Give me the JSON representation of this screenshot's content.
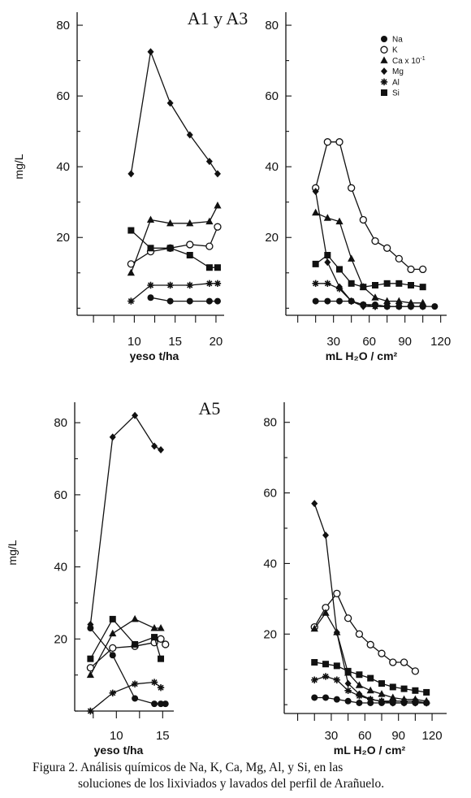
{
  "chart_data": [
    {
      "type": "line",
      "title": "A1 y A3",
      "xlabel": "yeso t/ha",
      "ylabel": "mg/L",
      "xlim": [
        3,
        21
      ],
      "ylim": [
        -2,
        83
      ],
      "xticks": [
        10,
        15,
        20
      ],
      "yticks": [
        20,
        40,
        60,
        80
      ],
      "series": [
        {
          "name": "Na",
          "x": [
            9.6,
            12,
            14.4,
            16.8,
            19.2,
            20.2
          ],
          "y": [
            null,
            3,
            2,
            2,
            2,
            2
          ]
        },
        {
          "name": "K",
          "x": [
            9.6,
            12,
            14.4,
            16.8,
            19.2,
            20.2
          ],
          "y": [
            12.5,
            16,
            17,
            18,
            17.5,
            23
          ]
        },
        {
          "name": "Ca x 10^-1",
          "x": [
            9.6,
            12,
            14.4,
            16.8,
            19.2,
            20.2
          ],
          "y": [
            10,
            25,
            24,
            24,
            24.5,
            29
          ]
        },
        {
          "name": "Mg",
          "x": [
            9.6,
            12,
            14.4,
            16.8,
            19.2,
            20.2
          ],
          "y": [
            38,
            72.5,
            58,
            49,
            41.5,
            38
          ]
        },
        {
          "name": "Al",
          "x": [
            9.6,
            12,
            14.4,
            16.8,
            19.2,
            20.2
          ],
          "y": [
            2,
            6.5,
            6.5,
            6.5,
            7,
            7
          ]
        },
        {
          "name": "Si",
          "x": [
            9.6,
            12,
            14.4,
            16.8,
            19.2,
            20.2
          ],
          "y": [
            22,
            17,
            17,
            15,
            11.5,
            11.5
          ]
        }
      ]
    },
    {
      "type": "line",
      "title": "",
      "xlabel": "mL H₂O / cm²",
      "ylabel": "",
      "xlim": [
        -10,
        125
      ],
      "ylim": [
        -2,
        83
      ],
      "xticks": [
        30,
        60,
        90,
        120
      ],
      "yticks": [
        20,
        40,
        60,
        80
      ],
      "legend": "top-right",
      "series": [
        {
          "name": "Na",
          "x": [
            15,
            25,
            35,
            45,
            55,
            65,
            75,
            85,
            95,
            105,
            115,
            120
          ],
          "y": [
            2,
            2,
            2,
            2,
            1,
            1,
            0.5,
            0.5,
            0.5,
            0.5,
            0.5,
            null
          ]
        },
        {
          "name": "K",
          "x": [
            15,
            25,
            35,
            45,
            55,
            65,
            75,
            85,
            95,
            105,
            115,
            120
          ],
          "y": [
            34,
            47,
            47,
            34,
            25,
            19,
            17,
            14,
            11,
            11,
            null,
            null
          ]
        },
        {
          "name": "Ca x 10^-1",
          "x": [
            15,
            25,
            35,
            45,
            55,
            65,
            75,
            85,
            95,
            105,
            115,
            120
          ],
          "y": [
            27,
            25.5,
            24.5,
            14,
            6,
            3,
            2,
            2,
            1.5,
            1.5,
            null,
            null
          ]
        },
        {
          "name": "Mg",
          "x": [
            15,
            25,
            35,
            45,
            55,
            65,
            75,
            85,
            95,
            105,
            115,
            120
          ],
          "y": [
            33,
            13,
            6,
            2,
            0.5,
            0.5,
            0.5,
            0.5,
            0.5,
            0.5,
            null,
            null
          ]
        },
        {
          "name": "Al",
          "x": [
            15,
            25,
            35,
            45,
            55,
            65,
            75,
            85,
            95,
            105,
            115,
            120
          ],
          "y": [
            7,
            7,
            5.5,
            2,
            1,
            0.5,
            0.5,
            0.5,
            0.5,
            0.5,
            null,
            null
          ]
        },
        {
          "name": "Si",
          "x": [
            15,
            25,
            35,
            45,
            55,
            65,
            75,
            85,
            95,
            105,
            115,
            120
          ],
          "y": [
            12.5,
            15,
            11,
            7,
            6,
            6.5,
            7,
            7,
            6.5,
            6,
            null,
            null
          ]
        }
      ]
    },
    {
      "type": "line",
      "title": "A5",
      "xlabel": "yeso t/ha",
      "ylabel": "mg/L",
      "xlim": [
        5.5,
        16.2
      ],
      "ylim": [
        0,
        85
      ],
      "xticks": [
        10,
        15
      ],
      "yticks": [
        20,
        40,
        60,
        80
      ],
      "series": [
        {
          "name": "Na",
          "x": [
            7.2,
            9.6,
            12,
            14.1,
            14.8,
            15.3
          ],
          "y": [
            23,
            15.5,
            3.5,
            2,
            2,
            2
          ]
        },
        {
          "name": "K",
          "x": [
            7.2,
            9.6,
            12,
            14.1,
            14.8,
            15.3
          ],
          "y": [
            12,
            17.5,
            18,
            19,
            20,
            18.5
          ]
        },
        {
          "name": "Ca x 10^-1",
          "x": [
            7.2,
            9.6,
            12,
            14.1,
            14.8,
            15.3
          ],
          "y": [
            10,
            21.5,
            25.5,
            23,
            23,
            null
          ]
        },
        {
          "name": "Mg",
          "x": [
            7.2,
            9.6,
            12,
            14.1,
            14.8,
            15.3
          ],
          "y": [
            24,
            76,
            82,
            73.5,
            72.5,
            null
          ]
        },
        {
          "name": "Al",
          "x": [
            7.2,
            9.6,
            12,
            14.1,
            14.8,
            15.3
          ],
          "y": [
            0,
            5,
            7.5,
            8,
            6.5,
            null
          ]
        },
        {
          "name": "Si",
          "x": [
            7.2,
            9.6,
            12,
            14.1,
            14.8,
            15.3
          ],
          "y": [
            14.5,
            25.5,
            18.5,
            20.5,
            14.5,
            null
          ]
        }
      ]
    },
    {
      "type": "line",
      "title": "",
      "xlabel": "mL H₂O / cm²",
      "ylabel": "",
      "xlim": [
        -12,
        133
      ],
      "ylim": [
        -2.5,
        85
      ],
      "xticks": [
        30,
        60,
        90,
        120
      ],
      "yticks": [
        20,
        40,
        60,
        80
      ],
      "series": [
        {
          "name": "Na",
          "x": [
            15,
            25,
            35,
            45,
            55,
            65,
            75,
            85,
            95,
            105,
            115,
            120
          ],
          "y": [
            2,
            2,
            1.5,
            1,
            0.5,
            0.5,
            0.5,
            0.5,
            0.5,
            0.5,
            0.5,
            null
          ]
        },
        {
          "name": "K",
          "x": [
            15,
            25,
            35,
            45,
            55,
            65,
            75,
            85,
            95,
            105,
            115,
            120
          ],
          "y": [
            22,
            27.5,
            31.5,
            24.5,
            20,
            17,
            14.5,
            12,
            12,
            9.5,
            null,
            null
          ]
        },
        {
          "name": "Ca x 10^-1",
          "x": [
            15,
            25,
            35,
            45,
            55,
            65,
            75,
            85,
            95,
            105,
            115,
            120
          ],
          "y": [
            21.5,
            26,
            20.5,
            9,
            5.5,
            4,
            3,
            2,
            1.5,
            1.5,
            1,
            null
          ]
        },
        {
          "name": "Mg",
          "x": [
            15,
            25,
            35,
            45,
            55,
            65,
            75,
            85,
            95,
            105,
            115,
            120
          ],
          "y": [
            57,
            48,
            20.5,
            6,
            3,
            1.5,
            1,
            0.5,
            0.5,
            0.5,
            0.5,
            null
          ]
        },
        {
          "name": "Al",
          "x": [
            15,
            25,
            35,
            45,
            55,
            65,
            75,
            85,
            95,
            105,
            115,
            120
          ],
          "y": [
            7,
            8,
            7,
            4,
            2.5,
            1.5,
            1,
            1,
            1,
            1,
            0.5,
            null
          ]
        },
        {
          "name": "Si",
          "x": [
            15,
            25,
            35,
            45,
            55,
            65,
            75,
            85,
            95,
            105,
            115,
            120
          ],
          "y": [
            12,
            11.5,
            11,
            9.5,
            8.5,
            7.5,
            6,
            5,
            4.5,
            4,
            3.5,
            null
          ]
        }
      ]
    }
  ],
  "caption": {
    "line1": "Figura 2. Análisis químicos de Na, K, Ca, Mg, Al, y Si, en las",
    "line2": "soluciones de los lixiviados y lavados del perfil de Arañuelo."
  }
}
